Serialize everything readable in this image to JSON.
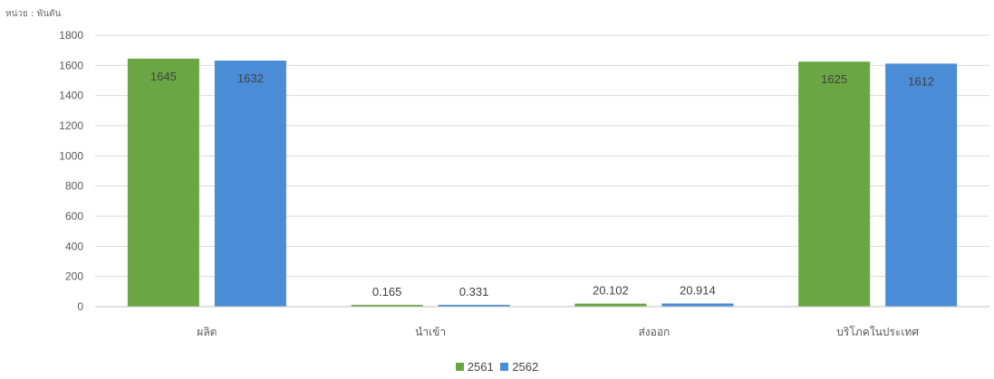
{
  "unit_label": "หน่วย : พันตัน",
  "chart_data": {
    "type": "bar",
    "categories": [
      "ผลิต",
      "นำเข้า",
      "ส่งออก",
      "บริโภคในประเทศ"
    ],
    "series": [
      {
        "name": "2561",
        "values": [
          1645,
          0.165,
          20.102,
          1625
        ],
        "labels": [
          "1645",
          "0.165",
          "20.102",
          "1625"
        ],
        "color": "#6aa744"
      },
      {
        "name": "2562",
        "values": [
          1632,
          0.331,
          20.914,
          1612
        ],
        "labels": [
          "1632",
          "0.331",
          "20.914",
          "1612"
        ],
        "color": "#4a8dd6"
      }
    ],
    "ylim": [
      0,
      1800
    ],
    "yticks": [
      "0",
      "200",
      "400",
      "600",
      "800",
      "1000",
      "1200",
      "1400",
      "1600",
      "1800"
    ],
    "grid": true,
    "legend_position": "bottom"
  }
}
